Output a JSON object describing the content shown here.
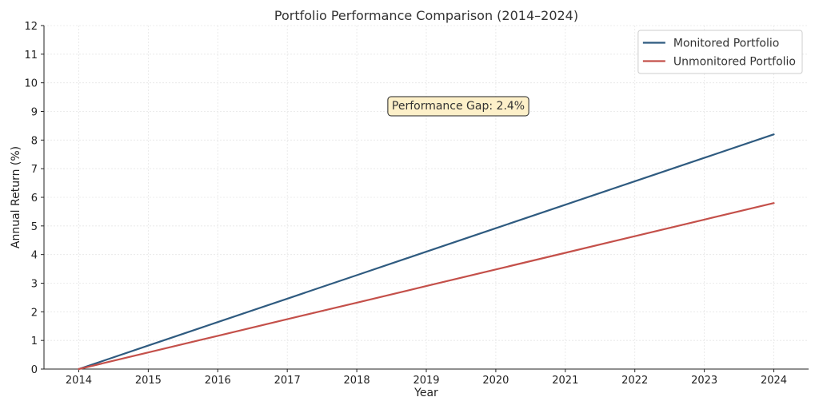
{
  "chart_data": {
    "type": "line",
    "title": "Portfolio Performance Comparison (2014–2024)",
    "xlabel": "Year",
    "ylabel": "Annual Return (%)",
    "x": [
      2014,
      2015,
      2016,
      2017,
      2018,
      2019,
      2020,
      2021,
      2022,
      2023,
      2024
    ],
    "xlim": [
      2013.5,
      2024.5
    ],
    "ylim": [
      0,
      12
    ],
    "yticks": [
      0,
      1,
      2,
      3,
      4,
      5,
      6,
      7,
      8,
      9,
      10,
      11,
      12
    ],
    "grid": true,
    "legend_position": "top-right",
    "series": [
      {
        "name": "Monitored Portfolio",
        "color": "#2f5b80",
        "values": [
          0,
          0.82,
          1.64,
          2.46,
          3.28,
          4.1,
          4.92,
          5.74,
          6.56,
          7.38,
          8.2
        ]
      },
      {
        "name": "Unmonitored Portfolio",
        "color": "#c4504a",
        "values": [
          0,
          0.58,
          1.16,
          1.74,
          2.32,
          2.9,
          3.48,
          4.06,
          4.64,
          5.22,
          5.8
        ]
      }
    ],
    "annotation": {
      "text": "Performance Gap: 2.4%",
      "background": "#fdf0c9",
      "border": "#222222"
    }
  }
}
